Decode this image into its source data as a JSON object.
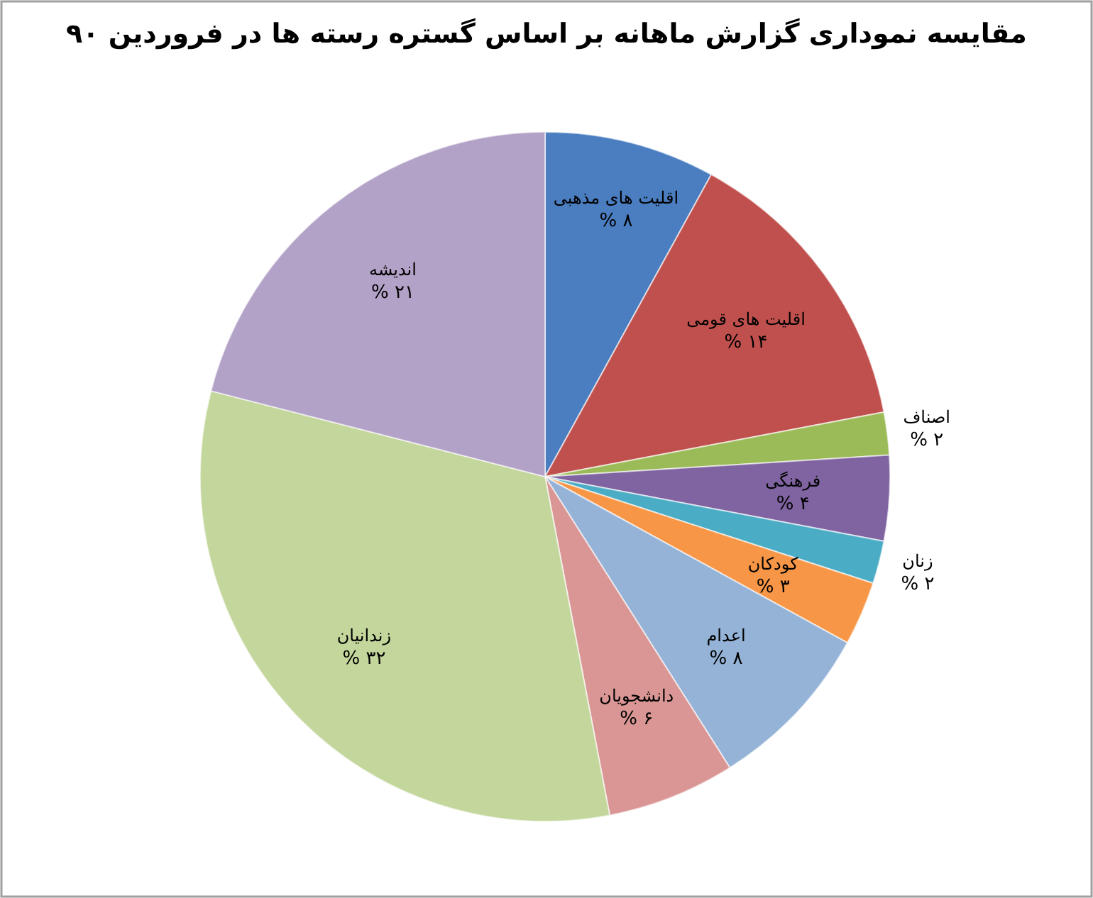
{
  "chart_data": {
    "type": "pie",
    "title": "مقایسه نمودارى گزارش ماهانه بر اساس گستره رسته ها در فروردین ۹۰",
    "categories": [
      "اقلیت های مذهبی",
      "اقلیت های قومی",
      "اصناف",
      "فرهنگی",
      "زنان",
      "کودکان",
      "اعدام",
      "دانشجویان",
      "زندانیان",
      "اندیشه"
    ],
    "values": [
      8,
      14,
      2,
      4,
      2,
      3,
      8,
      6,
      32,
      21
    ],
    "value_labels": [
      "۸ %",
      "۱۴ %",
      "۲ %",
      "۴ %",
      "۲ %",
      "۳ %",
      "۸ %",
      "۶ %",
      "۳۲ %",
      "۲۱ %"
    ],
    "colors": [
      "#4a7ec0",
      "#c0504d",
      "#9bbb59",
      "#8064a2",
      "#4bacc6",
      "#f79646",
      "#95b3d7",
      "#d99694",
      "#c3d69b",
      "#b3a2c7"
    ]
  }
}
